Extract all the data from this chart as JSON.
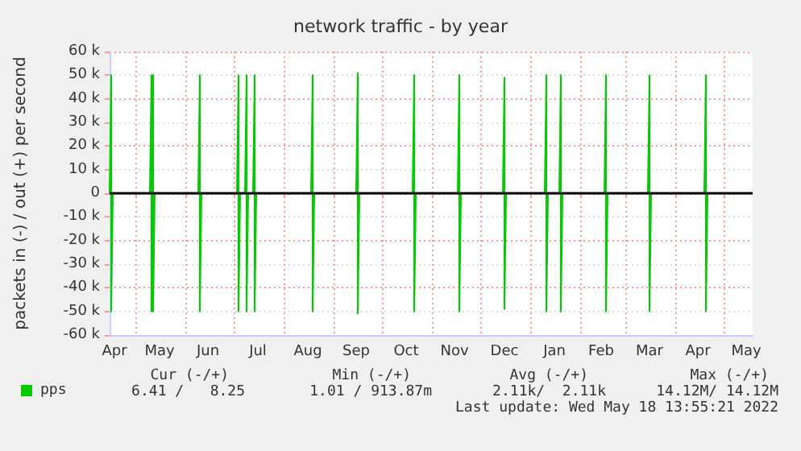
{
  "chart_data": {
    "type": "line",
    "title": "network traffic - by year",
    "ylabel": "packets in (-) / out (+) per second",
    "x": [
      "2021-04-15",
      "2021-04-16",
      "2021-04-16",
      "2021-04-17",
      "2021-05-10",
      "2021-05-11",
      "2021-05-11",
      "2021-05-12",
      "2021-05-12",
      "2021-05-13",
      "2021-06-09",
      "2021-06-10",
      "2021-06-10",
      "2021-06-11",
      "2021-07-03",
      "2021-07-04",
      "2021-07-04",
      "2021-07-05",
      "2021-07-08",
      "2021-07-09",
      "2021-07-09",
      "2021-07-10",
      "2021-07-13",
      "2021-07-14",
      "2021-07-14",
      "2021-07-15",
      "2021-08-18",
      "2021-08-19",
      "2021-08-19",
      "2021-08-20",
      "2021-09-15",
      "2021-09-16",
      "2021-09-16",
      "2021-09-17",
      "2021-10-20",
      "2021-10-21",
      "2021-10-21",
      "2021-10-22",
      "2021-11-17",
      "2021-11-18",
      "2021-11-18",
      "2021-11-19",
      "2021-12-15",
      "2021-12-16",
      "2021-12-16",
      "2021-12-17",
      "2022-01-10",
      "2022-01-11",
      "2022-01-11",
      "2022-01-12",
      "2022-01-19",
      "2022-01-20",
      "2022-01-20",
      "2022-01-21",
      "2022-02-16",
      "2022-02-17",
      "2022-02-17",
      "2022-02-18",
      "2022-03-15",
      "2022-03-16",
      "2022-03-16",
      "2022-03-17",
      "2022-04-19",
      "2022-04-20",
      "2022-04-20",
      "2022-04-21",
      "2022-05-18"
    ],
    "series": [
      {
        "name": "pps",
        "color": "#00cc00",
        "values": [
          0,
          50000,
          -50000,
          0,
          0,
          50000,
          -50000,
          50000,
          -50000,
          0,
          0,
          50000,
          -50000,
          0,
          0,
          50000,
          -50000,
          0,
          0,
          50000,
          -50000,
          0,
          0,
          50000,
          -50000,
          0,
          0,
          50000,
          -50000,
          0,
          0,
          51000,
          -51000,
          0,
          0,
          50000,
          -50000,
          0,
          0,
          50000,
          -50000,
          0,
          0,
          49000,
          -49000,
          0,
          0,
          50000,
          -50000,
          0,
          0,
          50000,
          -50000,
          0,
          0,
          50000,
          -50000,
          0,
          0,
          50000,
          -50000,
          0,
          0,
          50000,
          -50000,
          0,
          0
        ]
      }
    ],
    "xlim": [
      "2021-04-15",
      "2022-05-19"
    ],
    "xticks": [
      {
        "value": "2021-04-18",
        "label": "Apr"
      },
      {
        "value": "2021-05-01",
        "label": null
      },
      {
        "value": "2021-05-16",
        "label": "May"
      },
      {
        "value": "2021-06-01",
        "label": null
      },
      {
        "value": "2021-06-15",
        "label": "Jun"
      },
      {
        "value": "2021-07-01",
        "label": null
      },
      {
        "value": "2021-07-16",
        "label": "Jul"
      },
      {
        "value": "2021-08-01",
        "label": null
      },
      {
        "value": "2021-08-16",
        "label": "Aug"
      },
      {
        "value": "2021-09-01",
        "label": null
      },
      {
        "value": "2021-09-15",
        "label": "Sep"
      },
      {
        "value": "2021-10-01",
        "label": null
      },
      {
        "value": "2021-10-16",
        "label": "Oct"
      },
      {
        "value": "2021-11-01",
        "label": null
      },
      {
        "value": "2021-11-15",
        "label": "Nov"
      },
      {
        "value": "2021-12-01",
        "label": null
      },
      {
        "value": "2021-12-16",
        "label": "Dec"
      },
      {
        "value": "2022-01-01",
        "label": null
      },
      {
        "value": "2022-01-16",
        "label": "Jan"
      },
      {
        "value": "2022-02-01",
        "label": null
      },
      {
        "value": "2022-02-14",
        "label": "Feb"
      },
      {
        "value": "2022-03-01",
        "label": null
      },
      {
        "value": "2022-03-16",
        "label": "Mar"
      },
      {
        "value": "2022-04-01",
        "label": null
      },
      {
        "value": "2022-04-15",
        "label": "Apr"
      },
      {
        "value": "2022-05-01",
        "label": null
      },
      {
        "value": "2022-05-15",
        "label": "May"
      }
    ],
    "ylim": [
      -60000,
      60000
    ],
    "yticks": [
      {
        "value": -60000,
        "label": "-60 k"
      },
      {
        "value": -50000,
        "label": "-50 k"
      },
      {
        "value": -40000,
        "label": "-40 k"
      },
      {
        "value": -30000,
        "label": "-30 k"
      },
      {
        "value": -20000,
        "label": "-20 k"
      },
      {
        "value": -10000,
        "label": "-10 k"
      },
      0,
      {
        "value": 10000,
        "label": "10 k"
      },
      {
        "value": 20000,
        "label": "20 k"
      },
      {
        "value": 30000,
        "label": "30 k"
      },
      {
        "value": 40000,
        "label": "40 k"
      },
      {
        "value": 50000,
        "label": "50 k"
      },
      {
        "value": 60000,
        "label": "60 k"
      }
    ],
    "ref_lines": [
      {
        "axis": "y",
        "value": 0,
        "color": "#000000"
      }
    ],
    "grid": true,
    "legend": "bottom left",
    "line_style": "solid",
    "annotations": [
      "Cur (-/+)",
      "Min (-/+)",
      "Avg (-/+)",
      "Max (-/+)",
      "6.41 /   8.25",
      "1.01 / 913.87m",
      "2.11k/  2.11k",
      "14.12M/ 14.12M",
      "Last update: Wed May 18 13:55:21 2022"
    ]
  }
}
